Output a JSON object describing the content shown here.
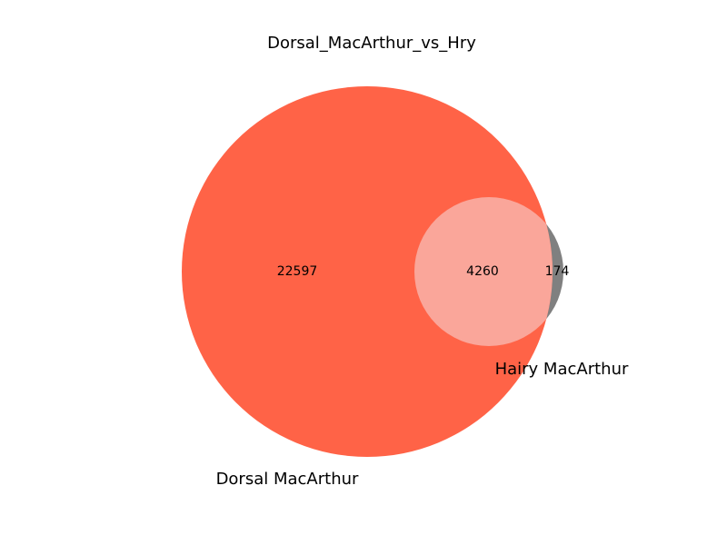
{
  "title": "Dorsal_MacArthur_vs_Hry",
  "sets": [
    {
      "name": "Dorsal MacArthur",
      "color": "#ff6347"
    },
    {
      "name": "Hairy MacArthur",
      "color": "#808080"
    }
  ],
  "regions": {
    "only_a": "22597",
    "overlap": "4260",
    "only_b": "174"
  },
  "colors": {
    "overlap": "#faa69a"
  }
}
